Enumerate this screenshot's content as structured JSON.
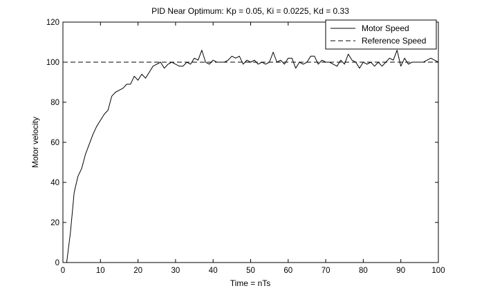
{
  "chart_data": {
    "type": "line",
    "title": "PID Near Optimum: Kp = 0.05, Ki = 0.0225, Kd = 0.33",
    "xlabel": "Time = nTs",
    "ylabel": "Motor velocity",
    "xlim": [
      0,
      100
    ],
    "ylim": [
      0,
      120
    ],
    "xticks": [
      "0",
      "10",
      "20",
      "30",
      "40",
      "50",
      "60",
      "70",
      "80",
      "90",
      "100"
    ],
    "yticks": [
      "0",
      "20",
      "40",
      "60",
      "80",
      "100",
      "120"
    ],
    "grid": false,
    "legend_position": "top-right",
    "series": [
      {
        "name": "Motor Speed",
        "line_style": "solid",
        "color": "#000000",
        "x": [
          1,
          2,
          3,
          4,
          5,
          6,
          7,
          8,
          9,
          10,
          11,
          12,
          13,
          14,
          15,
          16,
          17,
          18,
          19,
          20,
          21,
          22,
          23,
          24,
          25,
          26,
          27,
          28,
          29,
          30,
          31,
          32,
          33,
          34,
          35,
          36,
          37,
          38,
          39,
          40,
          41,
          42,
          43,
          44,
          45,
          46,
          47,
          48,
          49,
          50,
          51,
          52,
          53,
          54,
          55,
          56,
          57,
          58,
          59,
          60,
          61,
          62,
          63,
          64,
          65,
          66,
          67,
          68,
          69,
          70,
          71,
          72,
          73,
          74,
          75,
          76,
          77,
          78,
          79,
          80,
          81,
          82,
          83,
          84,
          85,
          86,
          87,
          88,
          89,
          90,
          91,
          92,
          93,
          94,
          95,
          96,
          97,
          98,
          99,
          100
        ],
        "y": [
          0,
          15,
          35,
          43,
          47,
          54,
          59,
          64,
          68,
          71,
          74,
          76,
          83,
          85,
          86,
          87,
          89,
          89,
          93,
          91,
          94,
          92,
          95,
          98,
          99,
          100,
          97,
          99,
          100,
          99,
          98,
          98,
          100,
          99,
          102,
          101,
          106,
          100,
          99,
          101,
          100,
          100,
          100,
          101,
          103,
          102,
          103,
          99,
          101,
          100,
          101,
          99,
          100,
          99,
          100,
          105,
          100,
          101,
          99,
          102,
          102,
          97,
          100,
          99,
          100,
          103,
          103,
          99,
          101,
          100,
          100,
          99,
          98,
          101,
          99,
          104,
          101,
          100,
          97,
          100,
          99,
          100,
          98,
          100,
          98,
          100,
          102,
          101,
          106,
          98,
          102,
          99,
          100,
          100,
          100,
          100,
          101,
          102,
          101,
          100
        ]
      },
      {
        "name": "Reference Speed",
        "line_style": "dashed",
        "color": "#000000",
        "x": [
          0,
          100
        ],
        "y": [
          100,
          100
        ]
      }
    ]
  }
}
